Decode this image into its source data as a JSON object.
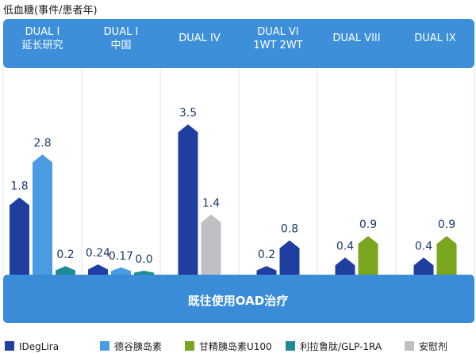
{
  "chart_data": {
    "type": "bar",
    "ylabel": "低血糖(事件/患者年)",
    "groups": [
      {
        "label": [
          "DUAL I",
          "延长研究"
        ],
        "bars": [
          {
            "series": "IDegLira",
            "value": 1.8,
            "label": "1.8"
          },
          {
            "series": "德谷胰岛素",
            "value": 2.8,
            "label": "2.8"
          },
          {
            "series": "利拉鲁肽/GLP-1RA",
            "value": 0.2,
            "label": "0.2"
          }
        ]
      },
      {
        "label": [
          "DUAL I",
          "中国"
        ],
        "bars": [
          {
            "series": "IDegLira",
            "value": 0.24,
            "label": "0.24"
          },
          {
            "series": "德谷胰岛素",
            "value": 0.17,
            "label": "0.17"
          },
          {
            "series": "利拉鲁肽/GLP-1RA",
            "value": 0.0,
            "label": "0.0"
          }
        ]
      },
      {
        "label": [
          "DUAL IV"
        ],
        "bars": [
          {
            "series": "IDegLira",
            "value": 3.5,
            "label": "3.5"
          },
          {
            "series": "安慰剂",
            "value": 1.4,
            "label": "1.4"
          }
        ]
      },
      {
        "label": [
          "DUAL VI",
          "1WT 2WT"
        ],
        "bars": [
          {
            "series": "IDegLira",
            "value": 0.2,
            "label": "0.2"
          },
          {
            "series": "IDegLira",
            "value": 0.8,
            "label": "0.8"
          }
        ]
      },
      {
        "label": [
          "DUAL VIII"
        ],
        "bars": [
          {
            "series": "IDegLira",
            "value": 0.4,
            "label": "0.4"
          },
          {
            "series": "甘精胰岛素U100",
            "value": 0.9,
            "label": "0.9"
          }
        ]
      },
      {
        "label": [
          "DUAL IX"
        ],
        "bars": [
          {
            "series": "IDegLira",
            "value": 0.4,
            "label": "0.4"
          },
          {
            "series": "甘精胰岛素U100",
            "value": 0.9,
            "label": "0.9"
          }
        ]
      }
    ],
    "ylim": [
      0,
      4
    ],
    "baseline_label": "既往使用OAD治疗",
    "legend": [
      {
        "name": "IDegLira",
        "color": "#1f3ea0"
      },
      {
        "name": "德谷胰岛素",
        "color": "#4a9be0"
      },
      {
        "name": "甘精胰岛素U100",
        "color": "#7aa51f"
      },
      {
        "name": "利拉鲁肽/GLP-1RA",
        "color": "#1e8b96"
      },
      {
        "name": "安慰剂",
        "color": "#bfc0c4"
      }
    ],
    "legend_position": "bottom",
    "colors": {
      "header_bg": "#3d8fd9",
      "base_bg": "#3a8bd8",
      "divider": "#d8e6f2"
    }
  }
}
